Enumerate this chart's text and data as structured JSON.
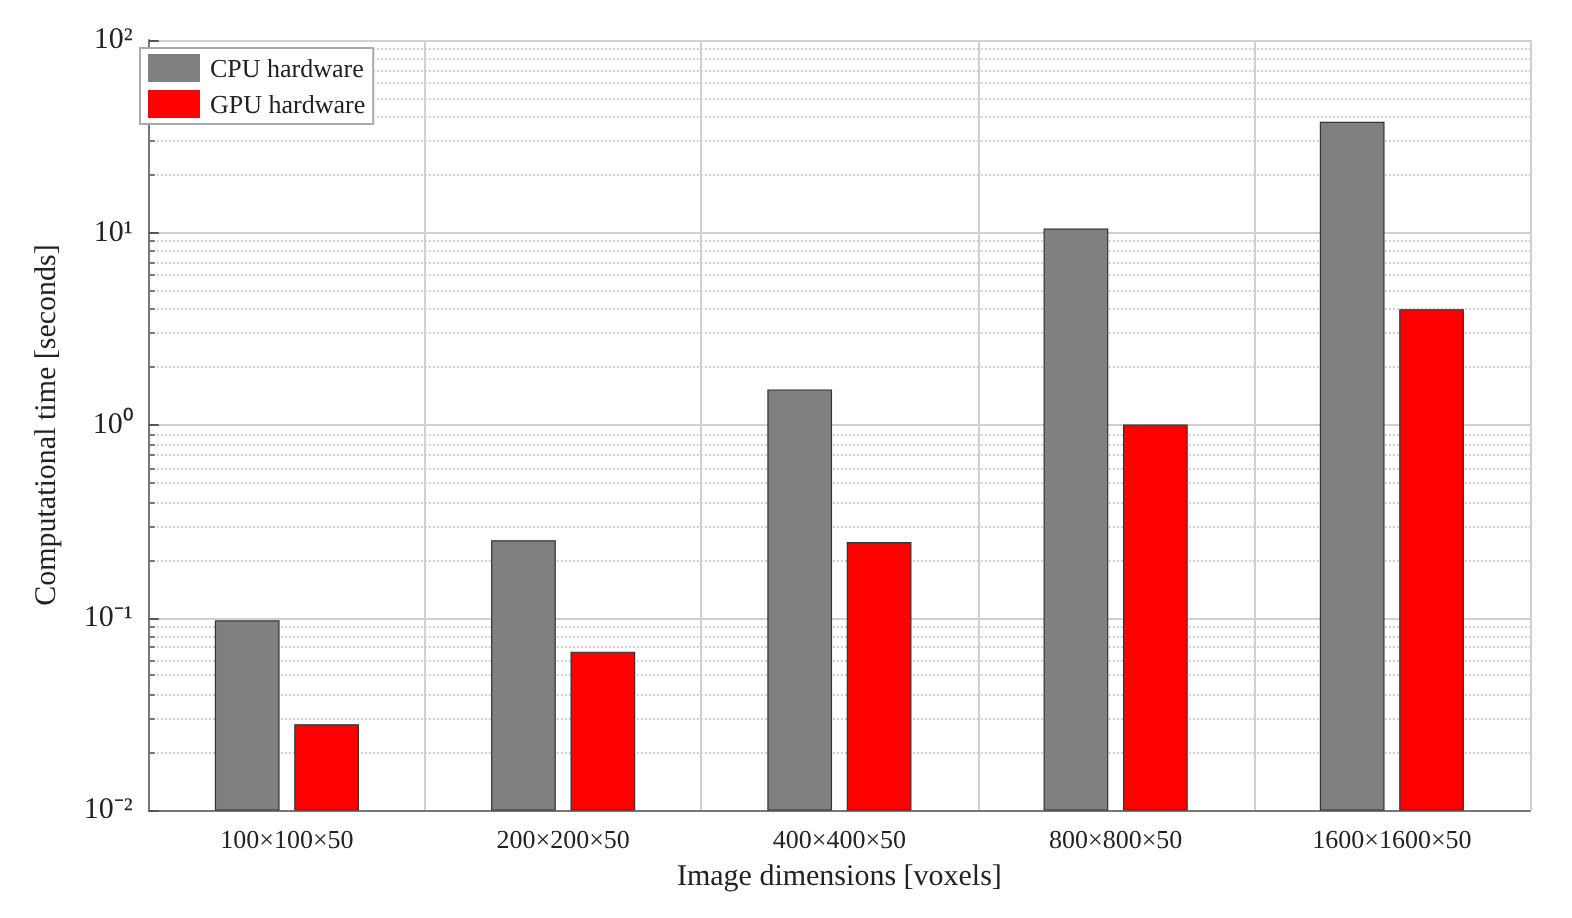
{
  "chart_data": {
    "type": "bar",
    "xlabel": "Image dimensions [voxels]",
    "ylabel": "Computational time [seconds]",
    "categories": [
      "100×100×50",
      "200×200×50",
      "400×400×50",
      "800×800×50",
      "1600×1600×50"
    ],
    "series": [
      {
        "name": "CPU hardware",
        "color": "#808080",
        "values": [
          0.096,
          0.25,
          1.52,
          10.4,
          37.3
        ]
      },
      {
        "name": "GPU hardware",
        "color": "#ff0000",
        "values": [
          0.0277,
          0.066,
          0.245,
          1.0,
          3.97
        ]
      }
    ],
    "log": true,
    "ylim": [
      0.01,
      100
    ],
    "yticks": [
      {
        "value": 0.01,
        "label": "10⁻²"
      },
      {
        "value": 0.1,
        "label": "10⁻¹"
      },
      {
        "value": 1,
        "label": "10⁰"
      },
      {
        "value": 10,
        "label": "10¹"
      },
      {
        "value": 100,
        "label": "10²"
      }
    ],
    "grid": true,
    "legend": "top left"
  }
}
